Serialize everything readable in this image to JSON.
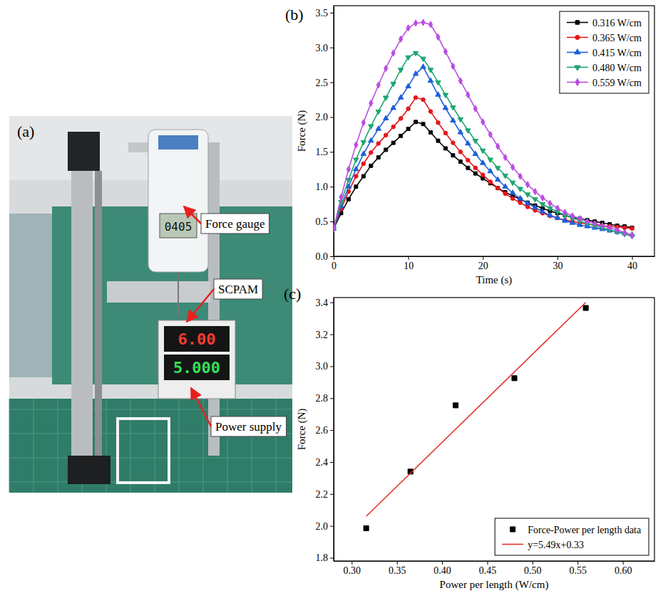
{
  "photo": {
    "panel": "(a)",
    "labels": [
      "Force gauge",
      "SCPAM",
      "Power supply"
    ],
    "displays": [
      "0405",
      "6.00",
      "5.000"
    ]
  },
  "chart_data": [
    {
      "type": "line",
      "panel": "(b)",
      "x_label": "Time (s)",
      "y_label": "Force (N)",
      "xlim": [
        0,
        43
      ],
      "ylim": [
        0,
        3.6
      ],
      "xticks": [
        0,
        10,
        20,
        30,
        40
      ],
      "yticks": [
        {
          "value": 0,
          "label": "0.0"
        },
        0.5,
        {
          "value": 1,
          "label": "1.0"
        },
        1.5,
        {
          "value": 2,
          "label": "2.0"
        },
        2.5,
        {
          "value": 3,
          "label": "3.0"
        },
        3.5
      ],
      "legend": "upper right",
      "x": [
        0,
        1,
        2,
        3,
        4,
        5,
        6,
        7,
        8,
        9,
        10,
        11,
        12,
        13,
        14,
        15,
        16,
        17,
        18,
        19,
        20,
        21,
        22,
        23,
        24,
        25,
        26,
        27,
        28,
        29,
        30,
        31,
        32,
        33,
        34,
        35,
        36,
        37,
        38,
        39,
        40
      ],
      "series": [
        {
          "name": "0.316 W/cm",
          "color": "#000000",
          "marker": "square",
          "values": [
            0.4,
            0.62,
            0.82,
            1.0,
            1.15,
            1.3,
            1.42,
            1.53,
            1.63,
            1.73,
            1.83,
            1.93,
            1.9,
            1.78,
            1.66,
            1.55,
            1.45,
            1.36,
            1.27,
            1.19,
            1.12,
            1.05,
            0.98,
            0.92,
            0.87,
            0.82,
            0.77,
            0.73,
            0.69,
            0.65,
            0.62,
            0.59,
            0.56,
            0.54,
            0.52,
            0.5,
            0.48,
            0.46,
            0.44,
            0.43,
            0.41
          ]
        },
        {
          "name": "0.365 W/cm",
          "color": "#e4171b",
          "marker": "circle",
          "values": [
            0.4,
            0.68,
            0.93,
            1.15,
            1.33,
            1.49,
            1.62,
            1.74,
            1.86,
            1.98,
            2.12,
            2.28,
            2.25,
            2.08,
            1.92,
            1.77,
            1.63,
            1.5,
            1.38,
            1.27,
            1.17,
            1.07,
            0.98,
            0.9,
            0.83,
            0.77,
            0.71,
            0.66,
            0.62,
            0.58,
            0.55,
            0.52,
            0.5,
            0.48,
            0.46,
            0.45,
            0.44,
            0.43,
            0.42,
            0.41,
            0.4
          ]
        },
        {
          "name": "0.415 W/cm",
          "color": "#1e5fd9",
          "marker": "triangle-up",
          "values": [
            0.4,
            0.72,
            1.0,
            1.25,
            1.47,
            1.66,
            1.83,
            1.98,
            2.13,
            2.28,
            2.44,
            2.62,
            2.72,
            2.52,
            2.32,
            2.13,
            1.95,
            1.78,
            1.62,
            1.47,
            1.34,
            1.22,
            1.1,
            1.0,
            0.91,
            0.83,
            0.76,
            0.7,
            0.64,
            0.59,
            0.55,
            0.51,
            0.48,
            0.45,
            0.43,
            0.41,
            0.39,
            0.37,
            0.35,
            0.33,
            0.31
          ]
        },
        {
          "name": "0.480 W/cm",
          "color": "#1ea672",
          "marker": "triangle-down",
          "values": [
            0.4,
            0.78,
            1.1,
            1.39,
            1.64,
            1.87,
            2.08,
            2.28,
            2.48,
            2.68,
            2.86,
            2.92,
            2.84,
            2.68,
            2.5,
            2.32,
            2.14,
            1.97,
            1.81,
            1.66,
            1.52,
            1.39,
            1.27,
            1.16,
            1.06,
            0.97,
            0.89,
            0.82,
            0.75,
            0.69,
            0.64,
            0.59,
            0.55,
            0.51,
            0.47,
            0.44,
            0.41,
            0.38,
            0.35,
            0.32,
            0.29
          ]
        },
        {
          "name": "0.559 W/cm",
          "color": "#b94fe0",
          "marker": "diamond",
          "values": [
            0.4,
            0.85,
            1.25,
            1.6,
            1.92,
            2.2,
            2.46,
            2.7,
            2.92,
            3.12,
            3.28,
            3.35,
            3.36,
            3.33,
            3.15,
            2.94,
            2.73,
            2.52,
            2.32,
            2.12,
            1.93,
            1.75,
            1.58,
            1.42,
            1.28,
            1.15,
            1.03,
            0.93,
            0.84,
            0.76,
            0.69,
            0.63,
            0.58,
            0.54,
            0.5,
            0.47,
            0.44,
            0.41,
            0.38,
            0.34,
            0.3
          ]
        }
      ]
    },
    {
      "type": "scatter",
      "panel": "(c)",
      "x_label": "Power per length (W/cm)",
      "y_label": "Force (N)",
      "xlim": [
        0.28,
        0.635
      ],
      "ylim": [
        1.78,
        3.43
      ],
      "xticks": [
        {
          "value": 0.3,
          "label": "0.30"
        },
        0.35,
        {
          "value": 0.4,
          "label": "0.40"
        },
        0.45,
        {
          "value": 0.5,
          "label": "0.50"
        },
        0.55,
        {
          "value": 0.6,
          "label": "0.60"
        }
      ],
      "yticks": [
        1.8,
        {
          "value": 2,
          "label": "2.0"
        },
        2.2,
        2.4,
        2.6,
        2.8,
        {
          "value": 3,
          "label": "3.0"
        },
        3.2,
        3.4
      ],
      "legend": "lower right",
      "series": [
        {
          "name": "Force-Power per length data",
          "type": "scatter",
          "color": "#000000",
          "marker": "square",
          "x": [
            0.316,
            0.365,
            0.415,
            0.48,
            0.559
          ],
          "values": [
            1.985,
            2.34,
            2.755,
            2.925,
            3.365
          ]
        },
        {
          "name": "y=5.49x+0.33",
          "type": "line",
          "color": "#e0312b",
          "x": [
            0.316,
            0.559
          ],
          "values": [
            2.06,
            3.4
          ]
        }
      ]
    }
  ]
}
